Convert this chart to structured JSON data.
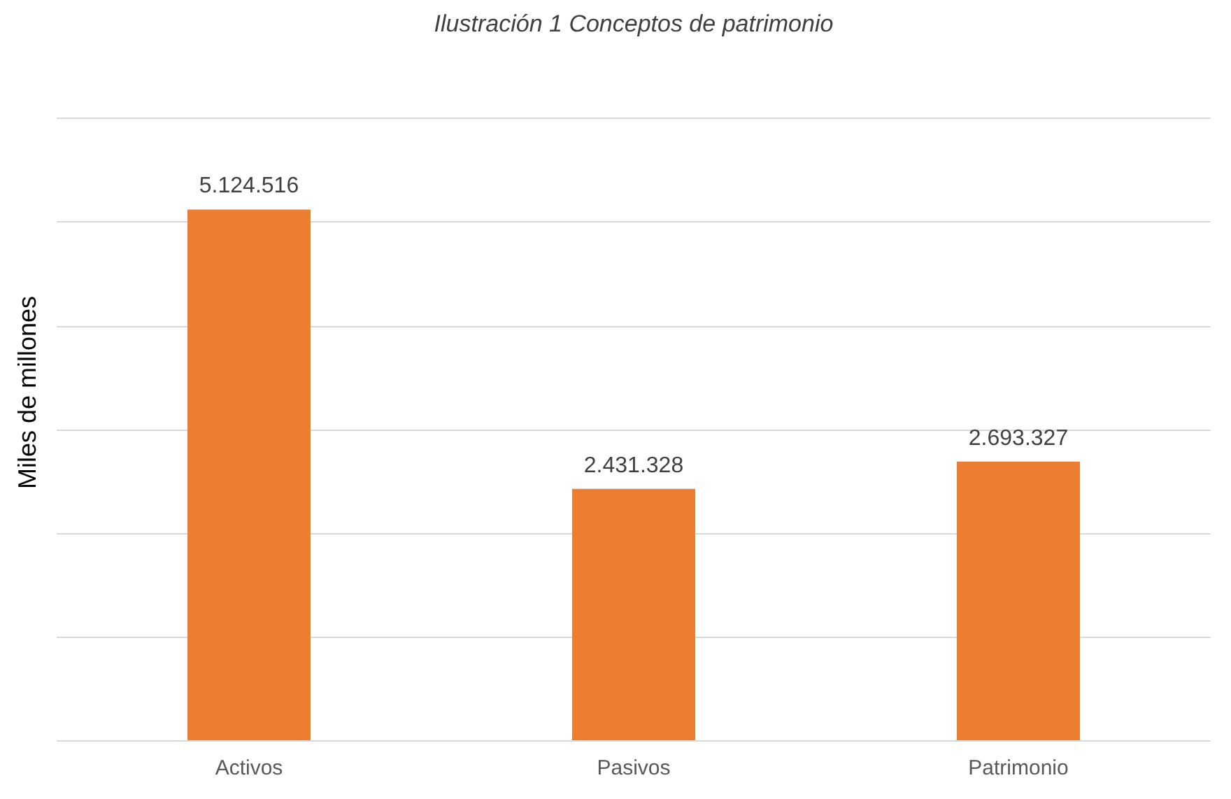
{
  "chart_data": {
    "type": "bar",
    "title": "Ilustración 1 Conceptos de patrimonio",
    "ylabel": "Miles de millones",
    "categories": [
      "Activos",
      "Pasivos",
      "Patrimonio"
    ],
    "values": [
      5124516,
      2431328,
      2693327
    ],
    "value_labels": [
      "5.124.516",
      "2.431.328",
      "2.693.327"
    ],
    "color": "#ed7d31",
    "ylim": [
      0,
      6000000
    ],
    "yticks": [
      {
        "value": 0,
        "label": null
      },
      {
        "value": 1000000,
        "label": null
      },
      {
        "value": 2000000,
        "label": null
      },
      {
        "value": 3000000,
        "label": null
      },
      {
        "value": 4000000,
        "label": null
      },
      {
        "value": 5000000,
        "label": null
      },
      {
        "value": 6000000,
        "label": null
      }
    ],
    "grid": "y",
    "tick_labels": "x"
  }
}
